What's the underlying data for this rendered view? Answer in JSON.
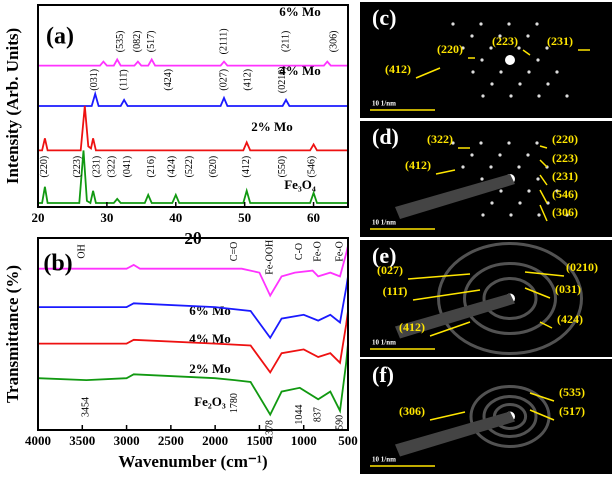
{
  "chart_data": [
    {
      "type": "line",
      "panel_label": "(a)",
      "xlabel": "2θ",
      "ylabel": "Intensity (Arb. Units)",
      "xlim": [
        20,
        65
      ],
      "xticks": [
        20,
        30,
        40,
        50,
        60
      ],
      "ylim": [
        0,
        100
      ],
      "series": [
        {
          "name": "6% Mo",
          "color": "#ff33ff",
          "x": [
            20,
            29,
            29.5,
            30,
            31,
            31.5,
            32,
            34,
            34.5,
            35,
            36,
            36.5,
            37,
            46.5,
            47,
            47.5,
            61.5,
            62,
            62.5,
            65
          ],
          "values": [
            70,
            70,
            72,
            70,
            70,
            73,
            70,
            70,
            72,
            70,
            70,
            73,
            70,
            70,
            72,
            70,
            70,
            72,
            70,
            70
          ]
        },
        {
          "name": "4% Mo",
          "color": "#1a1aff",
          "x": [
            20,
            27.8,
            28.3,
            28.8,
            32,
            32.5,
            33,
            46.5,
            47,
            47.5,
            55.5,
            56,
            56.5,
            65
          ],
          "values": [
            50,
            50,
            56,
            50,
            50,
            53,
            50,
            50,
            54,
            50,
            50,
            53,
            50,
            50
          ]
        },
        {
          "name": "2% Mo",
          "color": "#ee1111",
          "x": [
            20,
            20.6,
            21,
            21.4,
            26.2,
            26.8,
            27.3,
            27.7,
            28,
            28.4,
            49.8,
            50.3,
            50.8,
            59.5,
            60,
            60.5,
            65
          ],
          "values": [
            28,
            28,
            34,
            28,
            28,
            50,
            30,
            29,
            34,
            28,
            28,
            32,
            28,
            28,
            31,
            28,
            28
          ]
        },
        {
          "name": "Fe₃O₄",
          "color": "#119911",
          "x": [
            20,
            20.6,
            21,
            21.4,
            26,
            26.6,
            27.1,
            27.6,
            28,
            28.4,
            31,
            31.5,
            32,
            35.5,
            36,
            36.5,
            39.5,
            40,
            40.5,
            49.8,
            50.3,
            50.8,
            59.5,
            60,
            60.5,
            65
          ],
          "values": [
            2,
            2,
            10,
            2,
            2,
            28,
            3,
            2,
            8,
            2,
            2,
            4,
            2,
            2,
            6,
            2,
            2,
            6,
            2,
            2,
            8,
            2,
            2,
            7,
            2,
            2
          ]
        }
      ],
      "annotations": [
        {
          "text": "(535)",
          "x": 32,
          "y": 82
        },
        {
          "text": "(082)",
          "x": 34.5,
          "y": 82
        },
        {
          "text": "(517)",
          "x": 36.5,
          "y": 82
        },
        {
          "text": "(2111)",
          "x": 47,
          "y": 82
        },
        {
          "text": "(211)",
          "x": 56,
          "y": 82
        },
        {
          "text": "(306)",
          "x": 63,
          "y": 82
        },
        {
          "text": "(031)",
          "x": 28.2,
          "y": 63
        },
        {
          "text": "(111̄)",
          "x": 32.5,
          "y": 63
        },
        {
          "text": "(424)",
          "x": 39,
          "y": 63
        },
        {
          "text": "(027)",
          "x": 47,
          "y": 63
        },
        {
          "text": "(412)",
          "x": 50.5,
          "y": 63
        },
        {
          "text": "(0210)",
          "x": 55.5,
          "y": 63
        },
        {
          "text": "(220)",
          "x": 21,
          "y": 20
        },
        {
          "text": "(223)",
          "x": 25.8,
          "y": 20
        },
        {
          "text": "(231)",
          "x": 28.6,
          "y": 20
        },
        {
          "text": "(322)",
          "x": 30.8,
          "y": 20
        },
        {
          "text": "(041)",
          "x": 33,
          "y": 20
        },
        {
          "text": "(216)",
          "x": 36.5,
          "y": 20
        },
        {
          "text": "(424)",
          "x": 39.5,
          "y": 20
        },
        {
          "text": "(522)",
          "x": 42,
          "y": 20
        },
        {
          "text": "(620)",
          "x": 45.5,
          "y": 20
        },
        {
          "text": "(412)",
          "x": 50.3,
          "y": 20
        },
        {
          "text": "(550)",
          "x": 55.5,
          "y": 20
        },
        {
          "text": "(546)",
          "x": 59.8,
          "y": 20
        }
      ]
    },
    {
      "type": "line",
      "panel_label": "(b)",
      "xlabel": "Wavenumber (cm⁻¹)",
      "ylabel": "Transmittance (%)",
      "xlim": [
        4000,
        500
      ],
      "xticks": [
        4000,
        3500,
        3000,
        2500,
        2000,
        1500,
        1000,
        500
      ],
      "ylim": [
        0,
        100
      ],
      "series": [
        {
          "name": "6% Mo",
          "color": "#ff33ff",
          "x": [
            4000,
            3500,
            3000,
            2920,
            2850,
            2000,
            1700,
            1500,
            1378,
            1250,
            1100,
            900,
            837,
            700,
            590,
            520,
            500
          ],
          "values": [
            84,
            84,
            84,
            86,
            84,
            84,
            84,
            82,
            70,
            80,
            82,
            83,
            80,
            82,
            80,
            92,
            96
          ]
        },
        {
          "name": "4% Mo",
          "color": "#1a1aff",
          "x": [
            4000,
            3000,
            2920,
            2000,
            1600,
            1378,
            1250,
            1000,
            837,
            700,
            590,
            520,
            500
          ],
          "values": [
            64,
            64,
            66,
            64,
            62,
            48,
            58,
            60,
            57,
            60,
            56,
            74,
            80
          ]
        },
        {
          "name": "2% Mo",
          "color": "#ee1111",
          "x": [
            4000,
            3000,
            2920,
            2000,
            1600,
            1378,
            1250,
            1000,
            837,
            700,
            590,
            520,
            500
          ],
          "values": [
            45,
            45,
            47,
            45,
            44,
            30,
            40,
            42,
            38,
            40,
            35,
            55,
            62
          ]
        },
        {
          "name": "Fe₂O₃",
          "color": "#119911",
          "x": [
            4000,
            3454,
            3000,
            2920,
            2000,
            1780,
            1600,
            1378,
            1250,
            1044,
            837,
            700,
            590,
            520,
            500
          ],
          "values": [
            27,
            26,
            27,
            29,
            27,
            26,
            25,
            8,
            20,
            22,
            16,
            20,
            10,
            35,
            45
          ]
        }
      ],
      "annotations": [
        {
          "text": "OH",
          "x": 3500,
          "y": 93
        },
        {
          "text": "C=O",
          "x": 1780,
          "y": 93
        },
        {
          "text": "Fe-OOH",
          "x": 1378,
          "y": 90
        },
        {
          "text": "C-O",
          "x": 1044,
          "y": 93
        },
        {
          "text": "Fe-O",
          "x": 837,
          "y": 93
        },
        {
          "text": "Fe-O",
          "x": 590,
          "y": 93
        },
        {
          "text": "3454",
          "x": 3454,
          "y": 12
        },
        {
          "text": "1780",
          "x": 1780,
          "y": 14
        },
        {
          "text": "1378",
          "x": 1378,
          "y": 0
        },
        {
          "text": "1044",
          "x": 1044,
          "y": 8
        },
        {
          "text": "837",
          "x": 837,
          "y": 8
        },
        {
          "text": "590",
          "x": 590,
          "y": 4
        }
      ]
    }
  ],
  "saed_panels": [
    {
      "label": "(c)",
      "scale": "10 1/nm",
      "spots": [
        "(220)",
        "(223)",
        "(231)",
        "(412)"
      ]
    },
    {
      "label": "(d)",
      "scale": "10 1/nm",
      "spots": [
        "(322)",
        "(412)",
        "(220)",
        "(223)",
        "(231)",
        "(546)",
        "(306)"
      ]
    },
    {
      "label": "(e)",
      "scale": "10 1/nm",
      "spots": [
        "(027)",
        "(111̄)",
        "(412)",
        "(0210)",
        "(031)",
        "(424)"
      ]
    },
    {
      "label": "(f)",
      "scale": "10 1/nm",
      "spots": [
        "(535)",
        "(306)",
        "(517)"
      ]
    }
  ]
}
